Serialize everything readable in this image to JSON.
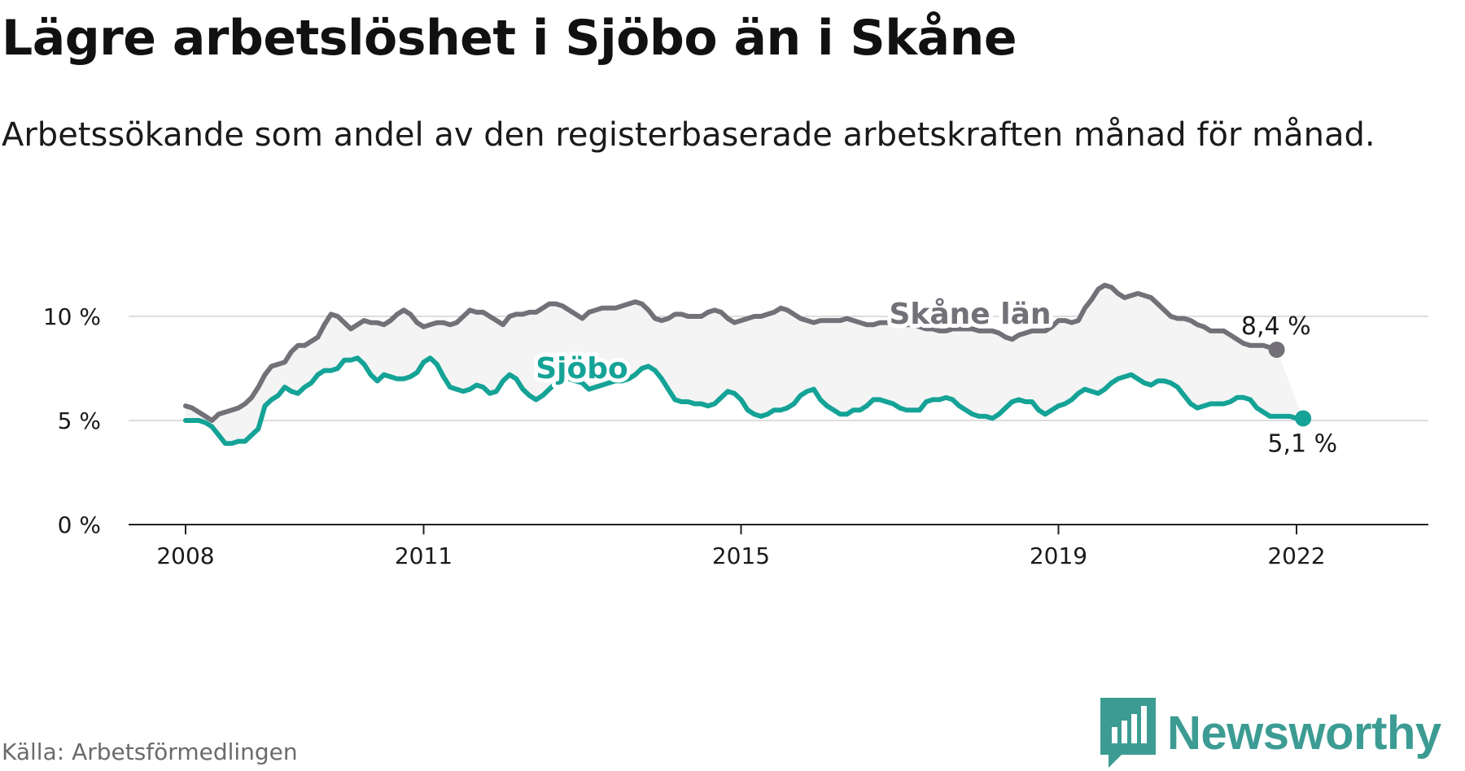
{
  "header": {
    "title": "Lägre arbetslöshet i Sjöbo än i Skåne",
    "subtitle": "Arbetssökande som andel av den registerbaserade arbetskraften månad för månad."
  },
  "footer": {
    "source": "Källa: Arbetsförmedlingen",
    "logo_text": "Newsworthy"
  },
  "colors": {
    "skane": "#737078",
    "sjobo": "#14a396",
    "band": "#f4f4f4",
    "grid": "#dddddd",
    "axis": "#222222"
  },
  "chart_data": {
    "type": "line",
    "title": "Lägre arbetslöshet i Sjöbo än i Skåne",
    "subtitle": "Arbetssökande som andel av den registerbaserade arbetskraften månad för månad.",
    "xlabel": "",
    "ylabel": "",
    "x_start": "2008-01",
    "x_end": "2022-10",
    "xlim": [
      2008.0,
      2023.54
    ],
    "ylim": [
      0,
      10
    ],
    "y_ticks": [
      0,
      5,
      10
    ],
    "y_tick_labels": [
      "0 %",
      "5 %",
      "10 %"
    ],
    "x_ticks": [
      2008,
      2011,
      2015,
      2019,
      2022
    ],
    "x_tick_labels": [
      "2008",
      "2011",
      "2015",
      "2019",
      "2022"
    ],
    "grid": true,
    "shaded_between_series": true,
    "series": [
      {
        "name": "Skåne län",
        "label": "Skåne län",
        "end_label": "8,4 %",
        "values": [
          5.7,
          5.6,
          5.4,
          5.2,
          5.0,
          5.3,
          5.4,
          5.5,
          5.6,
          5.8,
          6.1,
          6.6,
          7.2,
          7.6,
          7.7,
          7.8,
          8.3,
          8.6,
          8.6,
          8.8,
          9.0,
          9.6,
          10.1,
          10.0,
          9.7,
          9.4,
          9.6,
          9.8,
          9.7,
          9.7,
          9.6,
          9.8,
          10.1,
          10.3,
          10.1,
          9.7,
          9.5,
          9.6,
          9.7,
          9.7,
          9.6,
          9.7,
          10.0,
          10.3,
          10.2,
          10.2,
          10.0,
          9.8,
          9.6,
          10.0,
          10.1,
          10.1,
          10.2,
          10.2,
          10.4,
          10.6,
          10.6,
          10.5,
          10.3,
          10.1,
          9.9,
          10.2,
          10.3,
          10.4,
          10.4,
          10.4,
          10.5,
          10.6,
          10.7,
          10.6,
          10.3,
          9.9,
          9.8,
          9.9,
          10.1,
          10.1,
          10.0,
          10.0,
          10.0,
          10.2,
          10.3,
          10.2,
          9.9,
          9.7,
          9.8,
          9.9,
          10.0,
          10.0,
          10.1,
          10.2,
          10.4,
          10.3,
          10.1,
          9.9,
          9.8,
          9.7,
          9.8,
          9.8,
          9.8,
          9.8,
          9.9,
          9.8,
          9.7,
          9.6,
          9.6,
          9.7,
          9.7,
          9.7,
          9.6,
          9.6,
          9.6,
          9.5,
          9.4,
          9.4,
          9.3,
          9.3,
          9.4,
          9.4,
          9.4,
          9.4,
          9.3,
          9.3,
          9.3,
          9.2,
          9.0,
          8.9,
          9.1,
          9.2,
          9.3,
          9.3,
          9.3,
          9.5,
          9.8,
          9.8,
          9.7,
          9.8,
          10.4,
          10.8,
          11.3,
          11.5,
          11.4,
          11.1,
          10.9,
          11.0,
          11.1,
          11.0,
          10.9,
          10.6,
          10.3,
          10.0,
          9.9,
          9.9,
          9.8,
          9.6,
          9.5,
          9.3,
          9.3,
          9.3,
          9.1,
          8.9,
          8.7,
          8.6,
          8.6,
          8.6,
          8.5,
          8.4
        ]
      },
      {
        "name": "Sjöbo",
        "label": "Sjöbo",
        "end_label": "5,1 %",
        "values": [
          5.0,
          5.0,
          5.0,
          4.9,
          4.7,
          4.3,
          3.9,
          3.9,
          4.0,
          4.0,
          4.3,
          4.6,
          5.7,
          6.0,
          6.2,
          6.6,
          6.4,
          6.3,
          6.6,
          6.8,
          7.2,
          7.4,
          7.4,
          7.5,
          7.9,
          7.9,
          8.0,
          7.7,
          7.2,
          6.9,
          7.2,
          7.1,
          7.0,
          7.0,
          7.1,
          7.3,
          7.8,
          8.0,
          7.7,
          7.1,
          6.6,
          6.5,
          6.4,
          6.5,
          6.7,
          6.6,
          6.3,
          6.4,
          6.9,
          7.2,
          7.0,
          6.5,
          6.2,
          6.0,
          6.2,
          6.5,
          6.8,
          7.0,
          7.0,
          6.9,
          6.8,
          6.5,
          6.6,
          6.7,
          6.8,
          6.9,
          6.9,
          7.0,
          7.2,
          7.5,
          7.6,
          7.4,
          7.0,
          6.5,
          6.0,
          5.9,
          5.9,
          5.8,
          5.8,
          5.7,
          5.8,
          6.1,
          6.4,
          6.3,
          6.0,
          5.5,
          5.3,
          5.2,
          5.3,
          5.5,
          5.5,
          5.6,
          5.8,
          6.2,
          6.4,
          6.5,
          6.0,
          5.7,
          5.5,
          5.3,
          5.3,
          5.5,
          5.5,
          5.7,
          6.0,
          6.0,
          5.9,
          5.8,
          5.6,
          5.5,
          5.5,
          5.5,
          5.9,
          6.0,
          6.0,
          6.1,
          6.0,
          5.7,
          5.5,
          5.3,
          5.2,
          5.2,
          5.1,
          5.3,
          5.6,
          5.9,
          6.0,
          5.9,
          5.9,
          5.5,
          5.3,
          5.5,
          5.7,
          5.8,
          6.0,
          6.3,
          6.5,
          6.4,
          6.3,
          6.5,
          6.8,
          7.0,
          7.1,
          7.2,
          7.0,
          6.8,
          6.7,
          6.9,
          6.9,
          6.8,
          6.6,
          6.2,
          5.8,
          5.6,
          5.7,
          5.8,
          5.8,
          5.8,
          5.9,
          6.1,
          6.1,
          6.0,
          5.6,
          5.4,
          5.2,
          5.2,
          5.2,
          5.2,
          5.1,
          5.1
        ]
      }
    ]
  }
}
